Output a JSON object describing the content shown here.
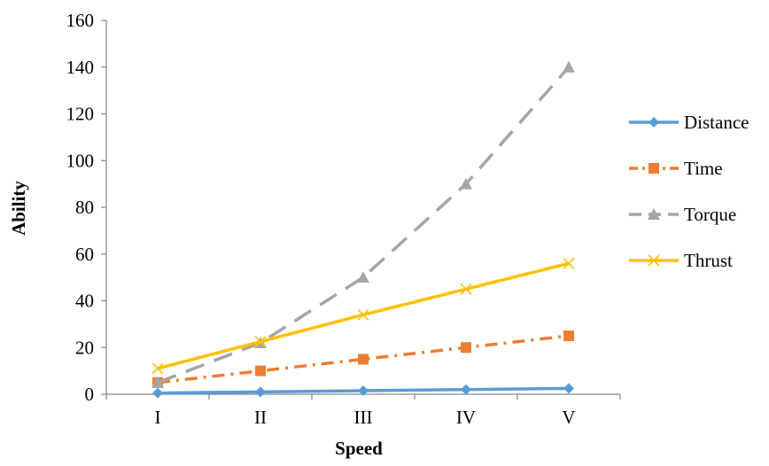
{
  "chart_data": {
    "type": "line",
    "xlabel": "Speed",
    "ylabel": "Ability",
    "categories": [
      "I",
      "II",
      "III",
      "IV",
      "V"
    ],
    "ylim": [
      0,
      160
    ],
    "yticks": [
      "0",
      "20",
      "40",
      "60",
      "80",
      "100",
      "120",
      "140",
      "160"
    ],
    "grid": false,
    "legend_position": "right",
    "series": [
      {
        "name": "Distance",
        "values": [
          0.5,
          1,
          1.5,
          2,
          2.5
        ],
        "color": "#5B9BD5",
        "marker": "diamond",
        "dash": "solid"
      },
      {
        "name": "Time",
        "values": [
          5,
          10,
          15,
          20,
          25
        ],
        "color": "#ED7D31",
        "marker": "square",
        "dash": "dash-dot"
      },
      {
        "name": "Torque",
        "values": [
          5,
          22,
          50,
          90,
          140
        ],
        "color": "#A5A5A5",
        "marker": "triangle",
        "dash": "long-dash"
      },
      {
        "name": "Thrust",
        "values": [
          11,
          22.5,
          34,
          45,
          56
        ],
        "color": "#FFC000",
        "marker": "x",
        "dash": "solid"
      }
    ]
  }
}
